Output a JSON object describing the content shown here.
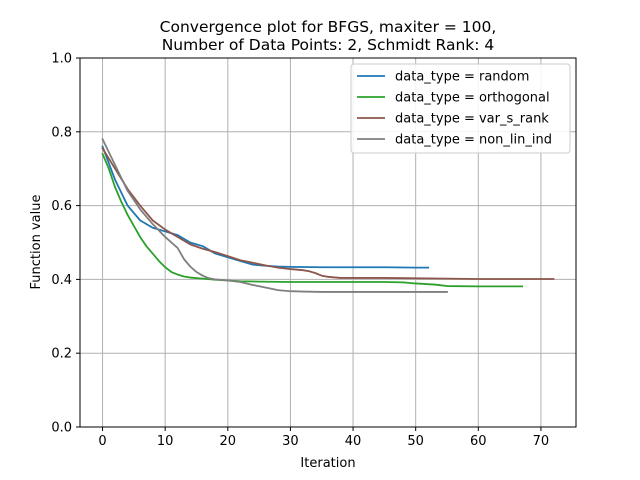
{
  "chart_data": {
    "type": "line",
    "title": [
      "Convergence plot for BFGS, maxiter = 100,",
      "Number of Data Points: 2, Schmidt Rank: 4"
    ],
    "xlabel": "Iteration",
    "ylabel": "Function value",
    "xlim": [
      -3.6,
      75.6
    ],
    "ylim": [
      0.0,
      1.0
    ],
    "xticks": [
      0,
      10,
      20,
      30,
      40,
      50,
      60,
      70
    ],
    "yticks": [
      0.0,
      0.2,
      0.4,
      0.6,
      0.8,
      1.0
    ],
    "ytick_labels": [
      "0.0",
      "0.2",
      "0.4",
      "0.6",
      "0.8",
      "1.0"
    ],
    "grid": true,
    "legend_position": "top-right",
    "series": [
      {
        "name": "data_type = random",
        "color": "#1f77b4",
        "points": [
          [
            0,
            0.76
          ],
          [
            2,
            0.67
          ],
          [
            4,
            0.6
          ],
          [
            6,
            0.56
          ],
          [
            8,
            0.54
          ],
          [
            10,
            0.53
          ],
          [
            12,
            0.52
          ],
          [
            14,
            0.5
          ],
          [
            16,
            0.49
          ],
          [
            18,
            0.47
          ],
          [
            20,
            0.46
          ],
          [
            22,
            0.45
          ],
          [
            24,
            0.44
          ],
          [
            26,
            0.437
          ],
          [
            28,
            0.435
          ],
          [
            30,
            0.434
          ],
          [
            35,
            0.433
          ],
          [
            40,
            0.433
          ],
          [
            45,
            0.433
          ],
          [
            50,
            0.432
          ],
          [
            52,
            0.432
          ]
        ]
      },
      {
        "name": "data_type = orthogonal",
        "color": "#2ca02c",
        "points": [
          [
            0,
            0.74
          ],
          [
            1,
            0.7
          ],
          [
            2,
            0.65
          ],
          [
            3,
            0.61
          ],
          [
            4,
            0.575
          ],
          [
            5,
            0.545
          ],
          [
            6,
            0.515
          ],
          [
            7,
            0.49
          ],
          [
            8,
            0.47
          ],
          [
            9,
            0.45
          ],
          [
            10,
            0.433
          ],
          [
            11,
            0.42
          ],
          [
            12,
            0.413
          ],
          [
            13,
            0.408
          ],
          [
            14,
            0.405
          ],
          [
            16,
            0.402
          ],
          [
            18,
            0.399
          ],
          [
            20,
            0.397
          ],
          [
            22,
            0.395
          ],
          [
            25,
            0.394
          ],
          [
            30,
            0.393
          ],
          [
            35,
            0.393
          ],
          [
            40,
            0.393
          ],
          [
            45,
            0.393
          ],
          [
            48,
            0.392
          ],
          [
            50,
            0.389
          ],
          [
            53,
            0.386
          ],
          [
            55,
            0.382
          ],
          [
            60,
            0.381
          ],
          [
            65,
            0.381
          ],
          [
            67,
            0.381
          ]
        ]
      },
      {
        "name": "data_type = var_s_rank",
        "color": "#8c564b",
        "points": [
          [
            0,
            0.755
          ],
          [
            2,
            0.7
          ],
          [
            4,
            0.645
          ],
          [
            6,
            0.6
          ],
          [
            8,
            0.56
          ],
          [
            10,
            0.535
          ],
          [
            12,
            0.515
          ],
          [
            14,
            0.495
          ],
          [
            16,
            0.483
          ],
          [
            18,
            0.474
          ],
          [
            20,
            0.463
          ],
          [
            22,
            0.452
          ],
          [
            24,
            0.445
          ],
          [
            26,
            0.438
          ],
          [
            28,
            0.432
          ],
          [
            30,
            0.428
          ],
          [
            32,
            0.425
          ],
          [
            33,
            0.422
          ],
          [
            34,
            0.417
          ],
          [
            35,
            0.41
          ],
          [
            36,
            0.407
          ],
          [
            38,
            0.404
          ],
          [
            40,
            0.404
          ],
          [
            45,
            0.404
          ],
          [
            50,
            0.403
          ],
          [
            55,
            0.402
          ],
          [
            60,
            0.401
          ],
          [
            65,
            0.401
          ],
          [
            70,
            0.401
          ],
          [
            72,
            0.401
          ]
        ]
      },
      {
        "name": "data_type = non_lin_ind",
        "color": "#7f7f7f",
        "points": [
          [
            0,
            0.78
          ],
          [
            2,
            0.71
          ],
          [
            4,
            0.64
          ],
          [
            6,
            0.59
          ],
          [
            8,
            0.55
          ],
          [
            10,
            0.515
          ],
          [
            12,
            0.485
          ],
          [
            13,
            0.455
          ],
          [
            14,
            0.435
          ],
          [
            15,
            0.42
          ],
          [
            16,
            0.41
          ],
          [
            17,
            0.403
          ],
          [
            18,
            0.4
          ],
          [
            20,
            0.397
          ],
          [
            22,
            0.393
          ],
          [
            24,
            0.385
          ],
          [
            26,
            0.378
          ],
          [
            28,
            0.371
          ],
          [
            30,
            0.368
          ],
          [
            32,
            0.367
          ],
          [
            35,
            0.366
          ],
          [
            40,
            0.366
          ],
          [
            45,
            0.366
          ],
          [
            50,
            0.366
          ],
          [
            55,
            0.366
          ]
        ]
      }
    ]
  }
}
